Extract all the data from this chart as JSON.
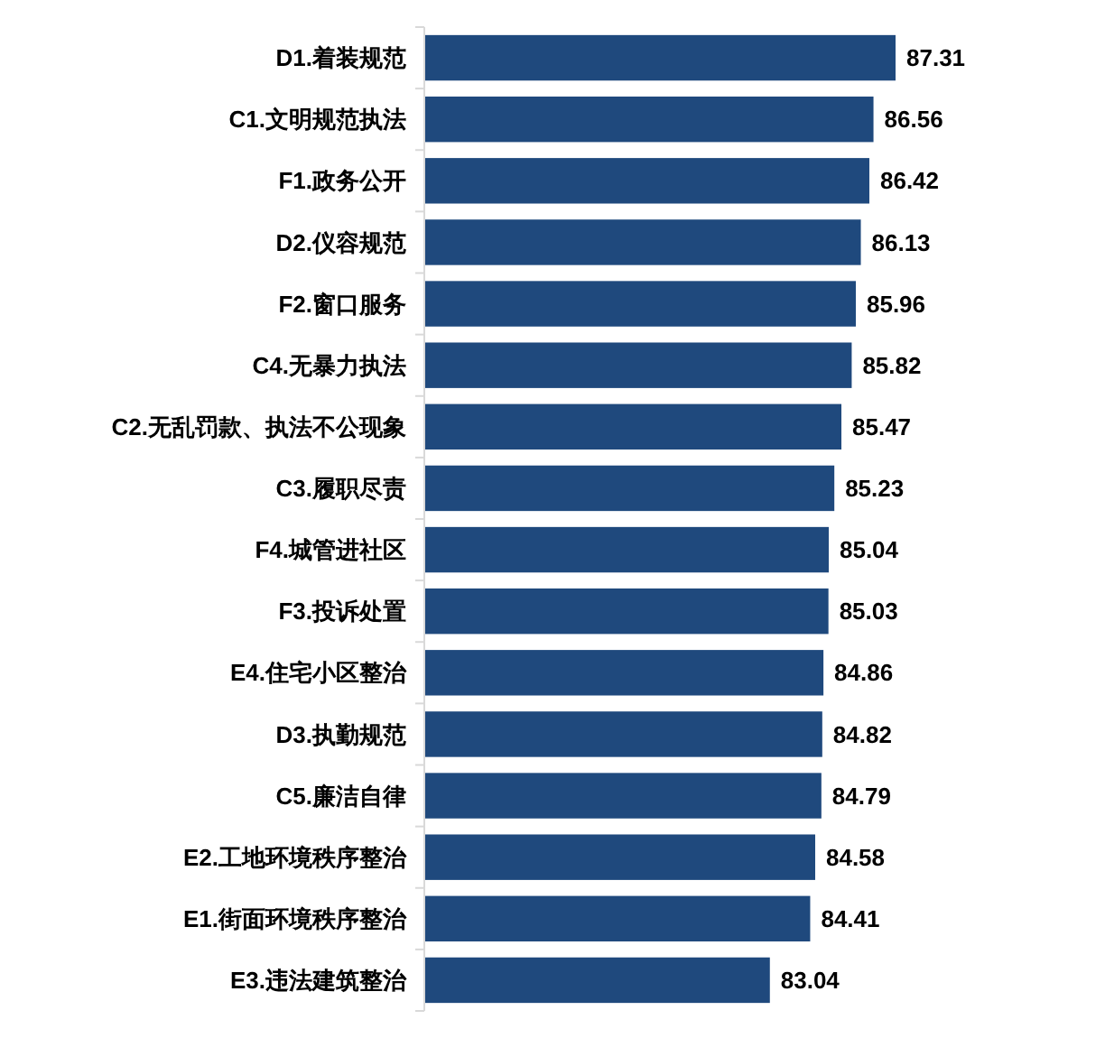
{
  "chart_data": {
    "type": "bar",
    "orientation": "horizontal",
    "categories": [
      "D1.着装规范",
      "C1.文明规范执法",
      "F1.政务公开",
      "D2.仪容规范",
      "F2.窗口服务",
      "C4.无暴力执法",
      "C2.无乱罚款、执法不公现象",
      "C3.履职尽责",
      "F4.城管进社区",
      "F3.投诉处置",
      "E4.住宅小区整治",
      "D3.执勤规范",
      "C5.廉洁自律",
      "E2.工地环境秩序整治",
      "E1.街面环境秩序整治",
      "E3.违法建筑整治"
    ],
    "values": [
      87.31,
      86.56,
      86.42,
      86.13,
      85.96,
      85.82,
      85.47,
      85.23,
      85.04,
      85.03,
      84.86,
      84.82,
      84.79,
      84.58,
      84.41,
      83.04
    ],
    "color": "#1f497d",
    "xlim": [
      71.3,
      87.31
    ],
    "data_labels": true,
    "tick_labels": "y"
  }
}
